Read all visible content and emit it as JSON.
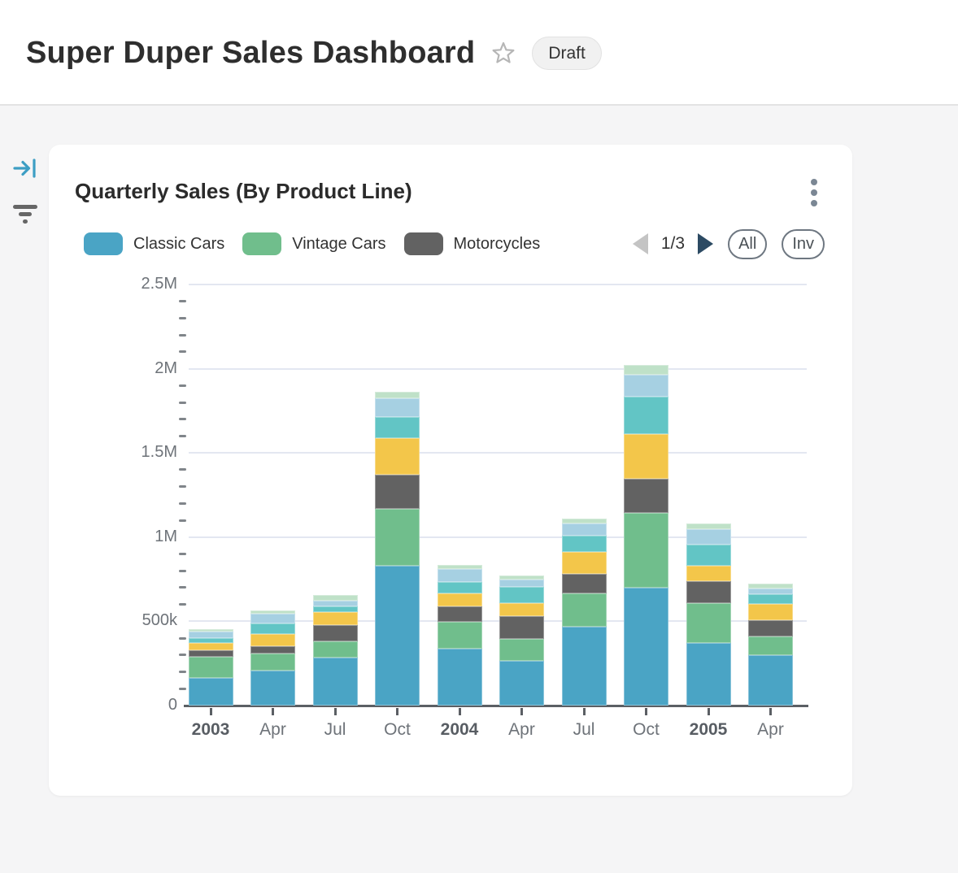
{
  "header": {
    "title": "Super Duper Sales Dashboard",
    "status_badge": "Draft"
  },
  "card": {
    "title": "Quarterly Sales (By Product Line)",
    "legend": {
      "items": [
        {
          "label": "Classic Cars",
          "color": "#4aa4c5"
        },
        {
          "label": "Vintage Cars",
          "color": "#70be8c"
        },
        {
          "label": "Motorcycles",
          "color": "#626262"
        }
      ],
      "page_indicator": "1/3",
      "select_all_label": "All",
      "invert_label": "Inv"
    }
  },
  "colors": {
    "accent_blue": "#3d9ec4",
    "icon_gray": "#666666",
    "gridline": "#e3e7f1",
    "axis": "#5b5f64",
    "pager_next": "#2c4a63",
    "pager_prev_disabled": "#c4c4c4"
  },
  "chart_data": {
    "type": "bar",
    "stacked": true,
    "title": "Quarterly Sales (By Product Line)",
    "categories": [
      "2003",
      "Apr",
      "Jul",
      "Oct",
      "2004",
      "Apr",
      "Jul",
      "Oct",
      "2005",
      "Apr"
    ],
    "bold_category_indexes": [
      0,
      4,
      8
    ],
    "values_unit": "thousand (k)",
    "ylim": [
      0,
      2500
    ],
    "yticks": [
      0,
      500,
      1000,
      1500,
      2000,
      2500
    ],
    "ytick_labels": [
      "0",
      "500k",
      "1M",
      "1.5M",
      "2M",
      "2.5M"
    ],
    "minor_tick_step": 100,
    "grid": true,
    "legend_position": "top",
    "series": [
      {
        "name": "Classic Cars",
        "color": "#4aa4c5",
        "legend_visible": true,
        "values": [
          165,
          208,
          284,
          832,
          337,
          265,
          466,
          700,
          374,
          297
        ]
      },
      {
        "name": "Vintage Cars",
        "color": "#70be8c",
        "legend_visible": true,
        "values": [
          124,
          102,
          97,
          336,
          162,
          132,
          198,
          444,
          232,
          113
        ]
      },
      {
        "name": "Motorcycles",
        "color": "#626262",
        "legend_visible": true,
        "values": [
          40,
          43,
          97,
          202,
          88,
          134,
          120,
          205,
          134,
          97
        ]
      },
      {
        "name": "unlabeled-yellow-series",
        "color": "#f3c64a",
        "legend_visible": false,
        "values": [
          45,
          73,
          77,
          217,
          77,
          75,
          129,
          263,
          92,
          96
        ]
      },
      {
        "name": "unlabeled-teal-series",
        "color": "#62c5c5",
        "legend_visible": false,
        "values": [
          28,
          61,
          32,
          126,
          72,
          97,
          97,
          221,
          123,
          57
        ]
      },
      {
        "name": "unlabeled-lightblue-series",
        "color": "#a6d0e2",
        "legend_visible": false,
        "values": [
          37,
          57,
          36,
          113,
          74,
          46,
          69,
          129,
          92,
          37
        ]
      },
      {
        "name": "unlabeled-palegreen-series",
        "color": "#bfe1c8",
        "legend_visible": false,
        "values": [
          14,
          19,
          32,
          39,
          27,
          21,
          33,
          61,
          32,
          27
        ]
      }
    ]
  }
}
